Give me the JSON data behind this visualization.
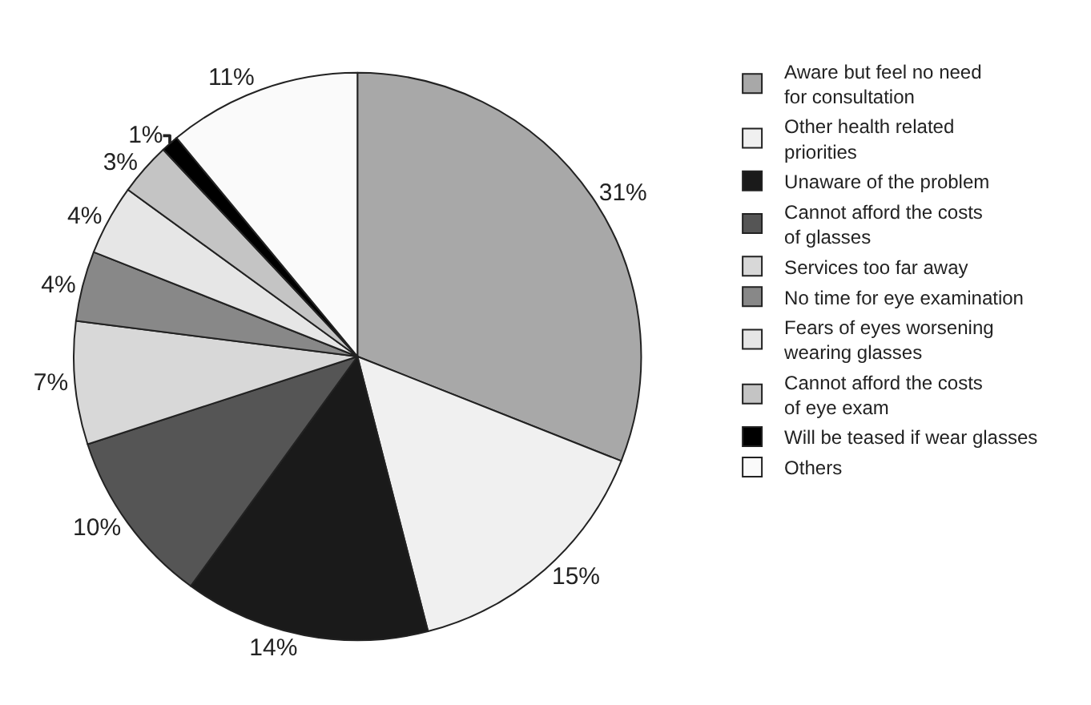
{
  "chart_data": {
    "type": "pie",
    "categories": [
      "Aware but feel no need for consultation",
      "Other health related priorities",
      "Unaware of the problem",
      "Cannot afford the costs of glasses",
      "Services too far away",
      "No time for eye examination",
      "Fears of eyes worsening wearing glasses",
      "Cannot afford the costs of eye exam",
      "Will be teased if wear glasses",
      "Others"
    ],
    "values": [
      31,
      15,
      14,
      10,
      7,
      4,
      4,
      3,
      1,
      11
    ],
    "colors": [
      "#a8a8a8",
      "#f0f0f0",
      "#1a1a1a",
      "#555555",
      "#d8d8d8",
      "#888888",
      "#e6e6e6",
      "#c4c4c4",
      "#000000",
      "#fafafa"
    ],
    "value_labels": [
      "31%",
      "15%",
      "14%",
      "10%",
      "7%",
      "4%",
      "4%",
      "3%",
      "1%",
      "11%"
    ],
    "legend": "right"
  }
}
